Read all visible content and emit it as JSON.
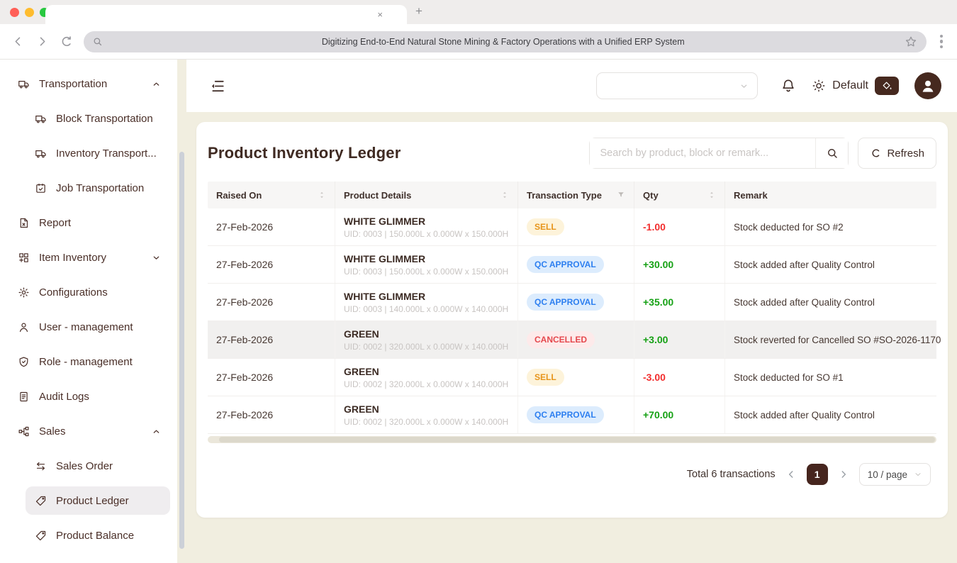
{
  "browser": {
    "tab_close": "×",
    "new_tab_label": "+",
    "url_text": "Digitizing End-to-End Natural Stone Mining & Factory Operations with a Unified ERP System"
  },
  "sidebar": {
    "items": [
      {
        "label": "Transportation",
        "icon": "truck-icon",
        "level": 0,
        "chevron": "up"
      },
      {
        "label": "Block Transportation",
        "icon": "truck-icon",
        "level": 1
      },
      {
        "label": "Inventory Transport...",
        "icon": "truck-icon",
        "level": 1
      },
      {
        "label": "Job Transportation",
        "icon": "calendar-check-icon",
        "level": 1
      },
      {
        "label": "Report",
        "icon": "report-file-icon",
        "level": 0
      },
      {
        "label": "Item Inventory",
        "icon": "item-grid-icon",
        "level": 0,
        "chevron": "down"
      },
      {
        "label": "Configurations",
        "icon": "gear-icon",
        "level": 0
      },
      {
        "label": "User - management",
        "icon": "user-icon",
        "level": 0
      },
      {
        "label": "Role - management",
        "icon": "shield-check-icon",
        "level": 0
      },
      {
        "label": "Audit Logs",
        "icon": "audit-file-icon",
        "level": 0
      },
      {
        "label": "Sales",
        "icon": "org-chart-icon",
        "level": 0,
        "chevron": "up"
      },
      {
        "label": "Sales Order",
        "icon": "swap-icon",
        "level": 1
      },
      {
        "label": "Product Ledger",
        "icon": "tag-icon",
        "level": 1,
        "active": true
      },
      {
        "label": "Product Balance",
        "icon": "tag-icon",
        "level": 1
      }
    ]
  },
  "header": {
    "theme_label": "Default"
  },
  "page": {
    "title": "Product Inventory Ledger",
    "search_placeholder": "Search by product, block or remark...",
    "refresh_label": "Refresh"
  },
  "table": {
    "columns": [
      {
        "label": "Raised On",
        "control": "sorter"
      },
      {
        "label": "Product Details",
        "control": "sorter"
      },
      {
        "label": "Transaction Type",
        "control": "filter"
      },
      {
        "label": "Qty",
        "control": "sorter"
      },
      {
        "label": "Remark",
        "control": "none"
      }
    ],
    "badge_styles": {
      "SELL": {
        "bg": "#fdf3da",
        "fg": "#e7941a"
      },
      "QC APPROVAL": {
        "bg": "#dcecfd",
        "fg": "#2d7ff0"
      },
      "CANCELLED": {
        "bg": "#fdeaea",
        "fg": "#e5484d"
      }
    },
    "qty_colors": {
      "positive": "#16a115",
      "negative": "#f22e2e"
    },
    "rows": [
      {
        "raised_on": "27-Feb-2026",
        "product": "WHITE GLIMMER",
        "uid": "UID: 0003 | 150.000L x 0.000W x 150.000H",
        "type": "SELL",
        "qty": "-1.00",
        "remark": "Stock deducted for SO #2"
      },
      {
        "raised_on": "27-Feb-2026",
        "product": "WHITE GLIMMER",
        "uid": "UID: 0003 | 150.000L x 0.000W x 150.000H",
        "type": "QC APPROVAL",
        "qty": "+30.00",
        "remark": "Stock added after Quality Control"
      },
      {
        "raised_on": "27-Feb-2026",
        "product": "WHITE GLIMMER",
        "uid": "UID: 0003 | 140.000L x 0.000W x 140.000H",
        "type": "QC APPROVAL",
        "qty": "+35.00",
        "remark": "Stock added after Quality Control"
      },
      {
        "raised_on": "27-Feb-2026",
        "product": "GREEN",
        "uid": "UID: 0002 | 320.000L x 0.000W x 140.000H",
        "type": "CANCELLED",
        "qty": "+3.00",
        "remark": "Stock reverted for Cancelled SO #SO-2026-1170",
        "highlighted": true
      },
      {
        "raised_on": "27-Feb-2026",
        "product": "GREEN",
        "uid": "UID: 0002 | 320.000L x 0.000W x 140.000H",
        "type": "SELL",
        "qty": "-3.00",
        "remark": "Stock deducted for SO #1"
      },
      {
        "raised_on": "27-Feb-2026",
        "product": "GREEN",
        "uid": "UID: 0002 | 320.000L x 0.000W x 140.000H",
        "type": "QC APPROVAL",
        "qty": "+70.00",
        "remark": "Stock added after Quality Control"
      }
    ]
  },
  "pagination": {
    "total_text": "Total 6 transactions",
    "current_page": "1",
    "page_size": "10 / page"
  }
}
